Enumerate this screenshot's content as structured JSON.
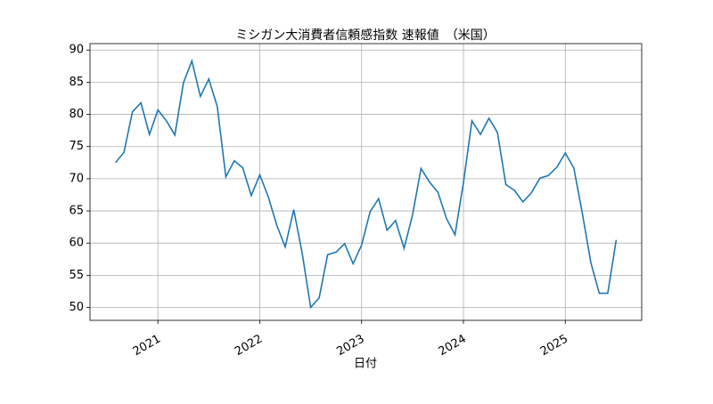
{
  "chart_data": {
    "type": "line",
    "title": "ミシガン大消費者信頼感指数 速報値　（米国）",
    "xlabel": "日付",
    "x": [
      "2020-08",
      "2020-09",
      "2020-10",
      "2020-11",
      "2020-12",
      "2021-01",
      "2021-02",
      "2021-03",
      "2021-04",
      "2021-05",
      "2021-06",
      "2021-07",
      "2021-08",
      "2021-09",
      "2021-10",
      "2021-11",
      "2021-12",
      "2022-01",
      "2022-02",
      "2022-03",
      "2022-04",
      "2022-05",
      "2022-06",
      "2022-07",
      "2022-08",
      "2022-09",
      "2022-10",
      "2022-11",
      "2022-12",
      "2023-01",
      "2023-02",
      "2023-03",
      "2023-04",
      "2023-05",
      "2023-06",
      "2023-07",
      "2023-08",
      "2023-09",
      "2023-10",
      "2023-11",
      "2023-12",
      "2024-01",
      "2024-02",
      "2024-03",
      "2024-04",
      "2024-05",
      "2024-06",
      "2024-07",
      "2024-08",
      "2024-09",
      "2024-10",
      "2024-11",
      "2024-12",
      "2025-01",
      "2025-02",
      "2025-03",
      "2025-04",
      "2025-05",
      "2025-06",
      "2025-07"
    ],
    "series": [
      {
        "name": "ミシガン大消費者信頼感指数 速報値",
        "color": "#1f77b4",
        "values": [
          72.5,
          74.1,
          80.4,
          81.8,
          76.9,
          80.7,
          79.0,
          76.8,
          84.9,
          88.3,
          82.8,
          85.5,
          81.2,
          70.3,
          72.8,
          71.7,
          67.4,
          70.6,
          67.2,
          62.8,
          59.4,
          65.2,
          58.4,
          50.0,
          51.5,
          58.2,
          58.6,
          59.9,
          56.8,
          59.7,
          64.9,
          66.9,
          62.0,
          63.5,
          59.2,
          64.4,
          71.6,
          69.5,
          67.9,
          63.8,
          61.3,
          69.4,
          79.0,
          76.9,
          79.4,
          77.2,
          69.1,
          68.2,
          66.4,
          67.8,
          70.1,
          70.5,
          71.8,
          74.0,
          71.7,
          64.7,
          57.0,
          52.2,
          52.2,
          60.5
        ]
      }
    ],
    "xlim": [
      "2020-05",
      "2025-10"
    ],
    "xticks": [
      {
        "value": "2021-01",
        "label": "2021"
      },
      {
        "value": "2022-01",
        "label": "2022"
      },
      {
        "value": "2023-01",
        "label": "2023"
      },
      {
        "value": "2024-01",
        "label": "2024"
      },
      {
        "value": "2025-01",
        "label": "2025"
      }
    ],
    "ylim": [
      48,
      91
    ],
    "yticks": [
      50,
      55,
      60,
      65,
      70,
      75,
      80,
      85,
      90
    ],
    "grid": true
  }
}
